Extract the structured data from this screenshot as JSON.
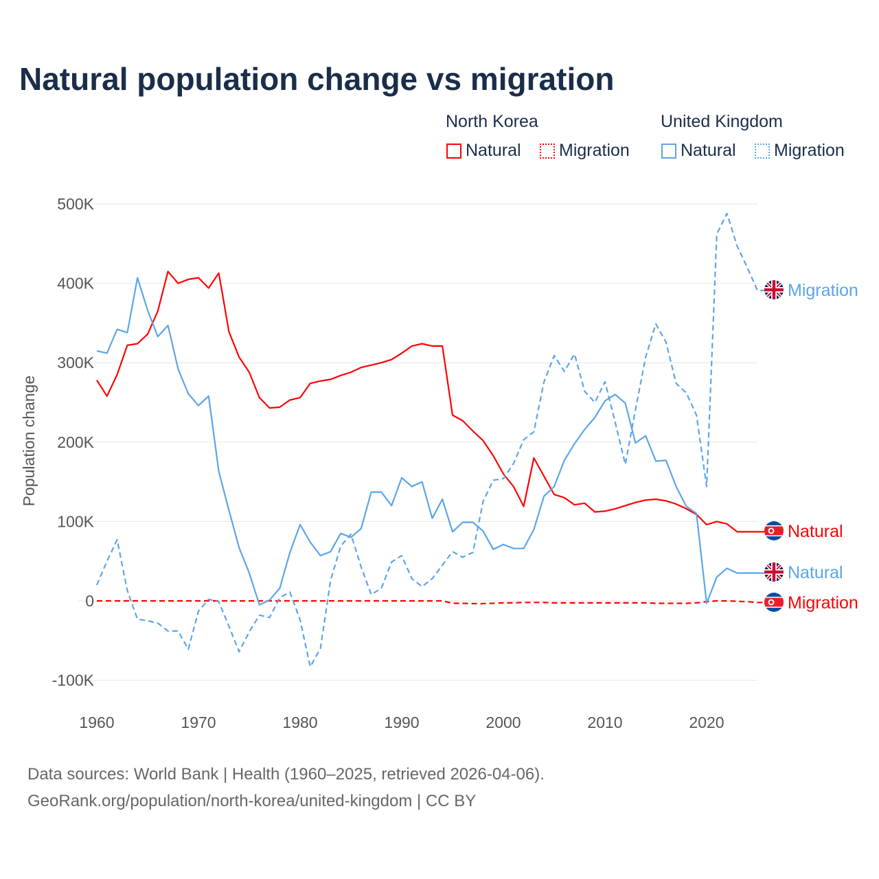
{
  "chart_data": {
    "type": "line",
    "title": "Natural population change vs migration",
    "xlabel": "",
    "ylabel": "Population change",
    "xlim": [
      1960,
      2025
    ],
    "ylim": [
      -100000,
      500000
    ],
    "x_ticks": [
      "1960",
      "1970",
      "1980",
      "1990",
      "2000",
      "2010",
      "2020"
    ],
    "y_ticks": [
      {
        "v": 500000,
        "l": "500K"
      },
      {
        "v": 400000,
        "l": "400K"
      },
      {
        "v": 300000,
        "l": "300K"
      },
      {
        "v": 200000,
        "l": "200K"
      },
      {
        "v": 100000,
        "l": "100K"
      },
      {
        "v": 0,
        "l": "0"
      },
      {
        "v": -100000,
        "l": "-100K"
      }
    ],
    "grid": true,
    "legend_groups": [
      "North Korea",
      "United Kingdom"
    ],
    "x": [
      1960,
      1961,
      1962,
      1963,
      1964,
      1965,
      1966,
      1967,
      1968,
      1969,
      1970,
      1971,
      1972,
      1973,
      1974,
      1975,
      1976,
      1977,
      1978,
      1979,
      1980,
      1981,
      1982,
      1983,
      1984,
      1985,
      1986,
      1987,
      1988,
      1989,
      1990,
      1991,
      1992,
      1993,
      1994,
      1995,
      1996,
      1997,
      1998,
      1999,
      2000,
      2001,
      2002,
      2003,
      2004,
      2005,
      2006,
      2007,
      2008,
      2009,
      2010,
      2011,
      2012,
      2013,
      2014,
      2015,
      2016,
      2017,
      2018,
      2019,
      2020,
      2021,
      2022,
      2023,
      2024,
      2025
    ],
    "series": [
      {
        "name": "Natural",
        "group": "North Korea",
        "color": "#ff0000",
        "dash": "solid",
        "end_label": "Natural",
        "flag": "north-korea",
        "values": [
          278,
          258,
          285,
          322,
          324,
          336,
          365,
          415,
          400,
          405,
          407,
          394,
          413,
          339,
          307,
          288,
          256,
          243,
          244,
          253,
          256,
          274,
          277,
          279,
          284,
          288,
          294,
          297,
          300,
          304,
          312,
          321,
          324,
          321,
          321,
          234,
          227,
          214,
          202,
          183,
          160,
          144,
          119,
          180,
          157,
          134,
          130,
          121,
          123,
          112,
          113,
          116,
          120,
          124,
          127,
          128,
          126,
          122,
          116,
          109,
          96,
          100,
          97,
          87,
          87,
          87
        ]
      },
      {
        "name": "Migration",
        "group": "North Korea",
        "color": "#ff0000",
        "dash": "dashed",
        "end_label": "Migration",
        "flag": "north-korea",
        "values": [
          0,
          0,
          0,
          0,
          0,
          0,
          0,
          0,
          0,
          0,
          0,
          0,
          0,
          0,
          0,
          0,
          0,
          0,
          0,
          0,
          0,
          0,
          0,
          0,
          0,
          0,
          0,
          0,
          0,
          0,
          0,
          0,
          0,
          0,
          0,
          -3,
          -3,
          -3.5,
          -3.5,
          -3,
          -2.5,
          -2.5,
          -2,
          -2,
          -2,
          -2.5,
          -2.5,
          -2.5,
          -2.5,
          -2.5,
          -2.5,
          -2.5,
          -2.5,
          -2.5,
          -2.5,
          -3,
          -3,
          -3,
          -3,
          -2.5,
          -1,
          0,
          0,
          -0.5,
          -1,
          -2
        ]
      },
      {
        "name": "Natural",
        "group": "United Kingdom",
        "color": "#5aa5ea",
        "dash": "solid",
        "end_label": "Natural",
        "flag": "united-kingdom",
        "values": [
          315,
          312,
          342,
          338,
          407,
          366,
          333,
          347,
          292,
          261,
          246,
          258,
          163,
          114,
          67,
          35,
          -5,
          1,
          16,
          61,
          96,
          74,
          57,
          62,
          85,
          80,
          91,
          137,
          137,
          120,
          155,
          144,
          150,
          104,
          128,
          87,
          99,
          99,
          88,
          65,
          71,
          66,
          66,
          90,
          132,
          144,
          177,
          198,
          216,
          231,
          252,
          260,
          249,
          199,
          208,
          176,
          177,
          144,
          119,
          110,
          -3,
          30,
          41,
          35,
          35,
          35
        ]
      },
      {
        "name": "Migration",
        "group": "United Kingdom",
        "color": "#5aa5ea",
        "dash": "dashed",
        "end_label": "Migration",
        "flag": "united-kingdom",
        "values": [
          20,
          50,
          77,
          13,
          -23,
          -25,
          -28,
          -38,
          -38,
          -61,
          -13,
          2,
          -1,
          -32,
          -64,
          -39,
          -18,
          -21,
          4,
          11,
          -24,
          -83,
          -60,
          26,
          69,
          84,
          43,
          8,
          16,
          49,
          57,
          28,
          18,
          28,
          45,
          62,
          55,
          61,
          125,
          152,
          154,
          173,
          203,
          213,
          276,
          309,
          289,
          311,
          264,
          250,
          276,
          225,
          172,
          241,
          307,
          349,
          326,
          274,
          262,
          234,
          144,
          462,
          488,
          447,
          420,
          391
        ]
      }
    ],
    "values_unit": "thousands"
  },
  "footer": {
    "line1": "Data sources: World Bank | Health (1960–2025, retrieved 2026-04-06).",
    "line2": "GeoRank.org/population/north-korea/united-kingdom | CC BY"
  }
}
